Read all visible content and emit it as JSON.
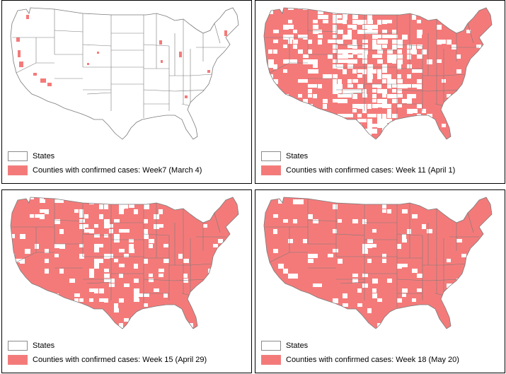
{
  "colors": {
    "case_fill": "#f47a7a",
    "state_border": "#7a7a7a",
    "state_fill": "#ffffff"
  },
  "panels": [
    {
      "id": "p1",
      "coverage": 0.03,
      "legend_states": "States",
      "legend_cases": "Counties with confirmed cases: Week7 (March 4)"
    },
    {
      "id": "p2",
      "coverage": 0.7,
      "legend_states": "States",
      "legend_cases": "Counties with confirmed cases: Week 11 (April 1)"
    },
    {
      "id": "p3",
      "coverage": 0.86,
      "legend_states": "States",
      "legend_cases": "Counties with confirmed cases: Week 15 (April 29)"
    },
    {
      "id": "p4",
      "coverage": 0.92,
      "legend_states": "States",
      "legend_cases": "Counties with confirmed cases: Week 18 (May 20)"
    }
  ]
}
